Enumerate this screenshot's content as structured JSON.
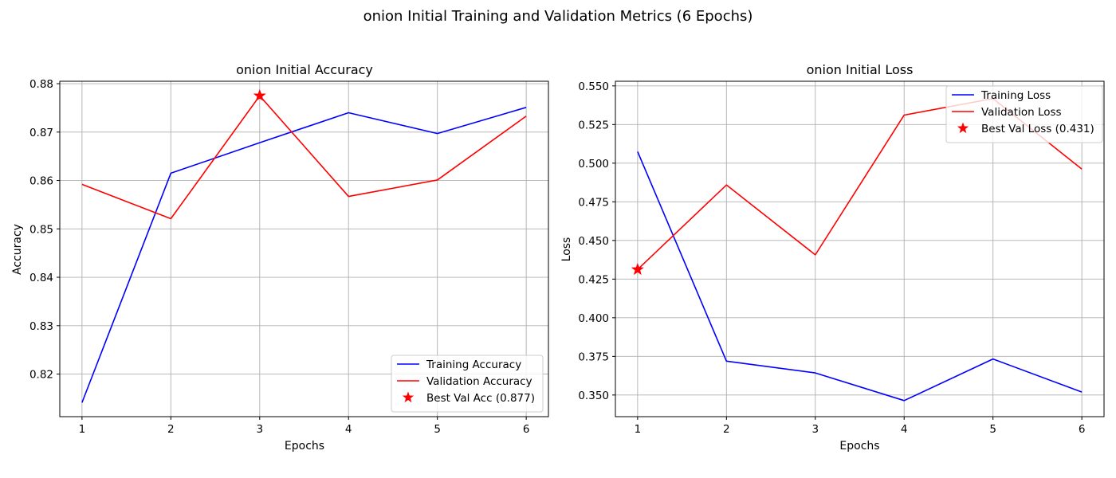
{
  "figure": {
    "suptitle": "onion Initial Training and Validation Metrics (6 Epochs)"
  },
  "chart_data": [
    {
      "type": "line",
      "title": "onion Initial Accuracy",
      "xlabel": "Epochs",
      "ylabel": "Accuracy",
      "x": [
        1,
        2,
        3,
        4,
        5,
        6
      ],
      "xticks": [
        1,
        2,
        3,
        4,
        5,
        6
      ],
      "xlim": [
        0.75,
        6.25
      ],
      "ylim": [
        0.8112,
        0.8805
      ],
      "yticks": [
        0.82,
        0.83,
        0.84,
        0.85,
        0.86,
        0.87,
        0.88
      ],
      "ytick_labels": [
        "0.82",
        "0.83",
        "0.84",
        "0.85",
        "0.86",
        "0.87",
        "0.88"
      ],
      "grid": true,
      "legend_position": "lower-right",
      "series": [
        {
          "name": "Training Accuracy",
          "color": "#0000ff",
          "values": [
            0.8141,
            0.8615,
            0.8678,
            0.874,
            0.8697,
            0.8751
          ]
        },
        {
          "name": "Validation Accuracy",
          "color": "#ff0000",
          "values": [
            0.8592,
            0.8521,
            0.8775,
            0.8567,
            0.8601,
            0.8733
          ]
        }
      ],
      "best_marker": {
        "label": "Best Val Acc (0.877)",
        "x": 3,
        "y": 0.8775,
        "color": "#ff0000",
        "marker": "star"
      }
    },
    {
      "type": "line",
      "title": "onion Initial Loss",
      "xlabel": "Epochs",
      "ylabel": "Loss",
      "x": [
        1,
        2,
        3,
        4,
        5,
        6
      ],
      "xticks": [
        1,
        2,
        3,
        4,
        5,
        6
      ],
      "xlim": [
        0.75,
        6.25
      ],
      "ylim": [
        0.336,
        0.553
      ],
      "yticks": [
        0.35,
        0.375,
        0.4,
        0.425,
        0.45,
        0.475,
        0.5,
        0.525,
        0.55
      ],
      "ytick_labels": [
        "0.350",
        "0.375",
        "0.400",
        "0.425",
        "0.450",
        "0.475",
        "0.500",
        "0.525",
        "0.550"
      ],
      "grid": true,
      "legend_position": "upper-right",
      "series": [
        {
          "name": "Training Loss",
          "color": "#0000ff",
          "values": [
            0.5075,
            0.3719,
            0.3643,
            0.3464,
            0.3733,
            0.3519
          ]
        },
        {
          "name": "Validation Loss",
          "color": "#ff0000",
          "values": [
            0.4312,
            0.4859,
            0.4407,
            0.5311,
            0.5418,
            0.4962
          ]
        }
      ],
      "best_marker": {
        "label": "Best Val Loss (0.431)",
        "x": 1,
        "y": 0.4312,
        "color": "#ff0000",
        "marker": "star"
      }
    }
  ]
}
